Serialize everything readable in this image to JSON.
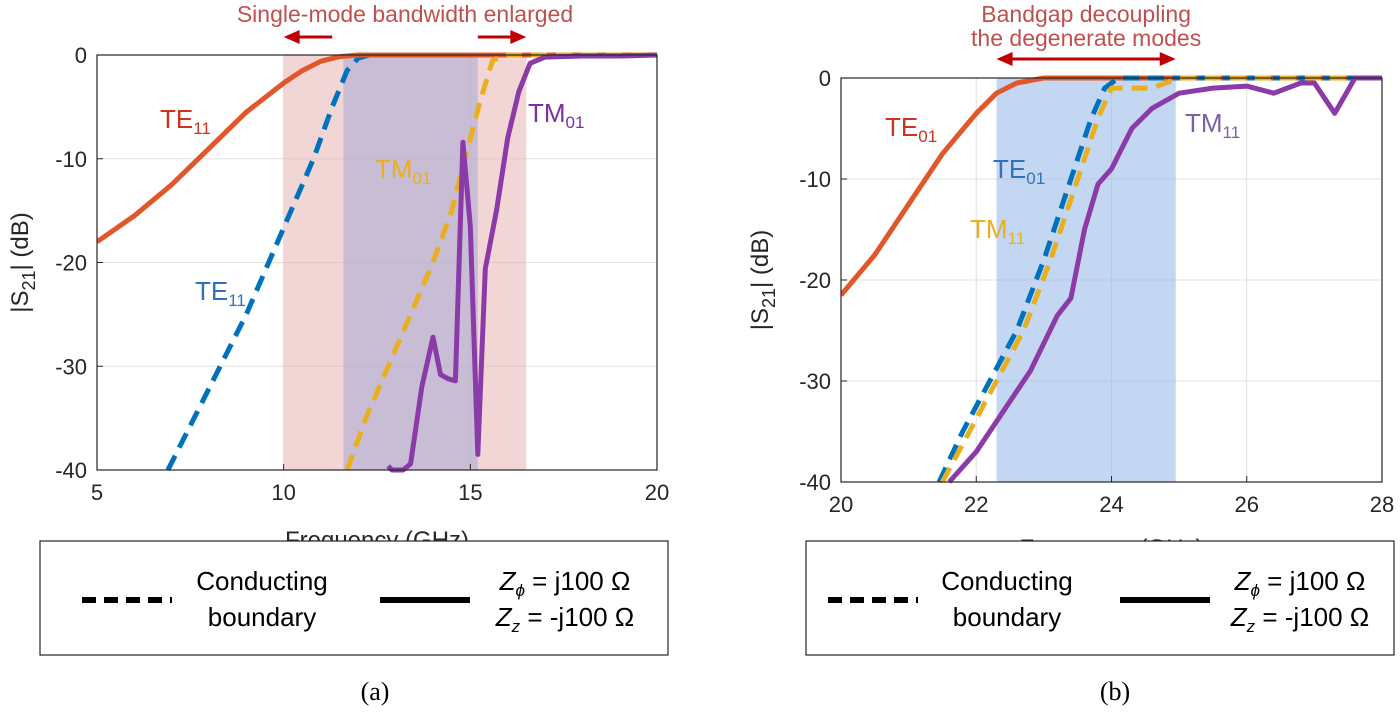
{
  "chart_data": [
    {
      "type": "line",
      "caption": "(a)",
      "xlabel": "Frequency (GHz)",
      "ylabel_main": "|S",
      "ylabel_sub": "21",
      "ylabel_end": "| (dB)",
      "xlim": [
        5,
        20
      ],
      "ylim": [
        -40,
        0
      ],
      "xticks": [
        5,
        10,
        15,
        20
      ],
      "yticks": [
        0,
        -10,
        -20,
        -30,
        -40
      ],
      "grid": true,
      "annotation": "Single-mode bandwidth enlarged",
      "shaded_regions": [
        {
          "x": [
            10.0,
            16.5
          ],
          "color": "#e8b4b4",
          "opacity": 0.55
        },
        {
          "x": [
            11.6,
            15.2
          ],
          "color": "#a8a8d6",
          "opacity": 0.55
        }
      ],
      "annotation_arrows": [
        {
          "from": 11.3,
          "to": 10.0
        },
        {
          "from": 15.2,
          "to": 16.5
        }
      ],
      "series": [
        {
          "name": "TE11 conducting",
          "style": "dashed",
          "color": "#0072bd",
          "x": [
            6.9,
            7.6,
            8.3,
            9.0,
            9.6,
            10.2,
            10.8,
            11.3,
            11.7,
            12.0,
            12.3,
            13,
            14,
            15,
            16,
            17,
            18,
            19,
            20
          ],
          "y": [
            -40,
            -35,
            -30,
            -25,
            -20,
            -15,
            -10,
            -5,
            -1.5,
            -0.3,
            0,
            0,
            0,
            0,
            0,
            0,
            0,
            0,
            0
          ]
        },
        {
          "name": "TE11 impedance",
          "style": "solid",
          "color": "#e0582a",
          "x": [
            5,
            6,
            7,
            8,
            9,
            10,
            10.5,
            11,
            11.5,
            12,
            13,
            14,
            15,
            16,
            17,
            18,
            19,
            20
          ],
          "y": [
            -18,
            -15.5,
            -12.5,
            -9,
            -5.5,
            -2.7,
            -1.5,
            -0.6,
            -0.15,
            0,
            0,
            0,
            0,
            0,
            0,
            0,
            0,
            0
          ]
        },
        {
          "name": "TM01 conducting",
          "style": "dashed",
          "color": "#e8b020",
          "x": [
            11.7,
            12.2,
            12.8,
            13.4,
            14.0,
            14.5,
            15.0,
            15.3,
            15.6,
            16,
            17,
            18,
            19,
            20
          ],
          "y": [
            -40,
            -35,
            -30,
            -25,
            -20,
            -15,
            -8,
            -4,
            -0.5,
            0,
            0,
            0,
            0,
            0
          ]
        },
        {
          "name": "TM01 impedance",
          "style": "solid",
          "color": "#8a3ba8",
          "x": [
            12.8,
            12.9,
            13.2,
            13.4,
            13.7,
            14.0,
            14.2,
            14.4,
            14.6,
            14.8,
            15.0,
            15.2,
            15.4,
            15.7,
            16.0,
            16.3,
            16.6,
            17,
            18,
            19,
            20
          ],
          "y": [
            -39.6,
            -40,
            -40,
            -39.4,
            -32,
            -27.2,
            -30.8,
            -31.2,
            -31.4,
            -8.4,
            -16.5,
            -38.5,
            -20.6,
            -15,
            -8,
            -3.5,
            -0.8,
            -0.2,
            -0.1,
            -0.1,
            0
          ]
        }
      ],
      "curve_labels": [
        {
          "main": "TE",
          "sub": "11",
          "color": "#cc3320"
        },
        {
          "main": "TE",
          "sub": "11",
          "color": "#2f73c0"
        },
        {
          "main": "TM",
          "sub": "01",
          "color": "#e8b020"
        },
        {
          "main": "TM",
          "sub": "01",
          "color": "#7d2fa0"
        }
      ],
      "legend": {
        "dashed_line1": "Conducting",
        "dashed_line2": "boundary",
        "solid_line1_sym": "Z",
        "solid_line1_sub": "ϕ",
        "solid_line1_rest": " = j100 Ω",
        "solid_line2_sym": "Z",
        "solid_line2_sub": "z",
        "solid_line2_rest": " = -j100 Ω"
      }
    },
    {
      "type": "line",
      "caption": "(b)",
      "xlabel": "Frequency (GHz)",
      "ylabel_main": "|S",
      "ylabel_sub": "21",
      "ylabel_end": "| (dB)",
      "xlim": [
        20,
        28
      ],
      "ylim": [
        -40,
        0
      ],
      "xticks": [
        20,
        22,
        24,
        26,
        28
      ],
      "yticks": [
        0,
        -10,
        -20,
        -30,
        -40
      ],
      "grid": true,
      "annotation_line1": "Bandgap decoupling",
      "annotation_line2": "the degenerate modes",
      "shaded_regions": [
        {
          "x": [
            22.3,
            24.95
          ],
          "color": "#9dbde9",
          "opacity": 0.6
        }
      ],
      "annotation_arrows": [
        {
          "from": 23.6,
          "to": 22.3
        },
        {
          "from": 23.6,
          "to": 24.95
        }
      ],
      "series": [
        {
          "name": "TE01 impedance",
          "style": "solid",
          "color": "#e0582a",
          "x": [
            20,
            20.5,
            21,
            21.5,
            22,
            22.3,
            22.6,
            23,
            23.5,
            24,
            25,
            26,
            27,
            28
          ],
          "y": [
            -21.5,
            -17.5,
            -12.5,
            -7.5,
            -3.5,
            -1.5,
            -0.5,
            0,
            0,
            0,
            0,
            0,
            0,
            0
          ]
        },
        {
          "name": "TE01 conducting",
          "style": "dashed",
          "color": "#0072bd",
          "x": [
            21.45,
            21.8,
            22.2,
            22.6,
            23.0,
            23.4,
            23.7,
            23.9,
            24.1,
            25,
            26,
            27,
            28
          ],
          "y": [
            -40,
            -35,
            -30,
            -25,
            -18,
            -10,
            -4,
            -1,
            0,
            0,
            0,
            0,
            0
          ]
        },
        {
          "name": "TM11 conducting",
          "style": "dashed",
          "color": "#e8b020",
          "x": [
            21.5,
            21.9,
            22.3,
            22.7,
            23.1,
            23.5,
            23.8,
            24.0,
            24.3,
            24.6,
            25,
            26,
            27,
            28
          ],
          "y": [
            -40,
            -35,
            -30,
            -25,
            -18,
            -10,
            -4,
            -1,
            -1,
            -1,
            0,
            0,
            0,
            0
          ]
        },
        {
          "name": "TM11 impedance",
          "style": "solid",
          "color": "#8a3ba8",
          "x": [
            21.6,
            22.0,
            22.4,
            22.8,
            23.2,
            23.4,
            23.6,
            23.8,
            24.0,
            24.3,
            24.6,
            25.0,
            25.5,
            26.0,
            26.4,
            26.8,
            27.0,
            27.3,
            27.6,
            28
          ],
          "y": [
            -40,
            -37,
            -33,
            -29,
            -23.5,
            -21.8,
            -15,
            -10.5,
            -9,
            -5,
            -3,
            -1.5,
            -1,
            -0.8,
            -1.5,
            -0.5,
            -0.5,
            -3.5,
            0,
            0
          ]
        }
      ],
      "curve_labels": [
        {
          "main": "TE",
          "sub": "01",
          "color": "#cc3320"
        },
        {
          "main": "TE",
          "sub": "01",
          "color": "#2f73c0"
        },
        {
          "main": "TM",
          "sub": "11",
          "color": "#e8b020"
        },
        {
          "main": "TM",
          "sub": "11",
          "color": "#7d5ea8"
        }
      ],
      "legend": {
        "dashed_line1": "Conducting",
        "dashed_line2": "boundary",
        "solid_line1_sym": "Z",
        "solid_line1_sub": "ϕ",
        "solid_line1_rest": " = j100 Ω",
        "solid_line2_sym": "Z",
        "solid_line2_sub": "z",
        "solid_line2_rest": " = -j100 Ω"
      }
    }
  ]
}
